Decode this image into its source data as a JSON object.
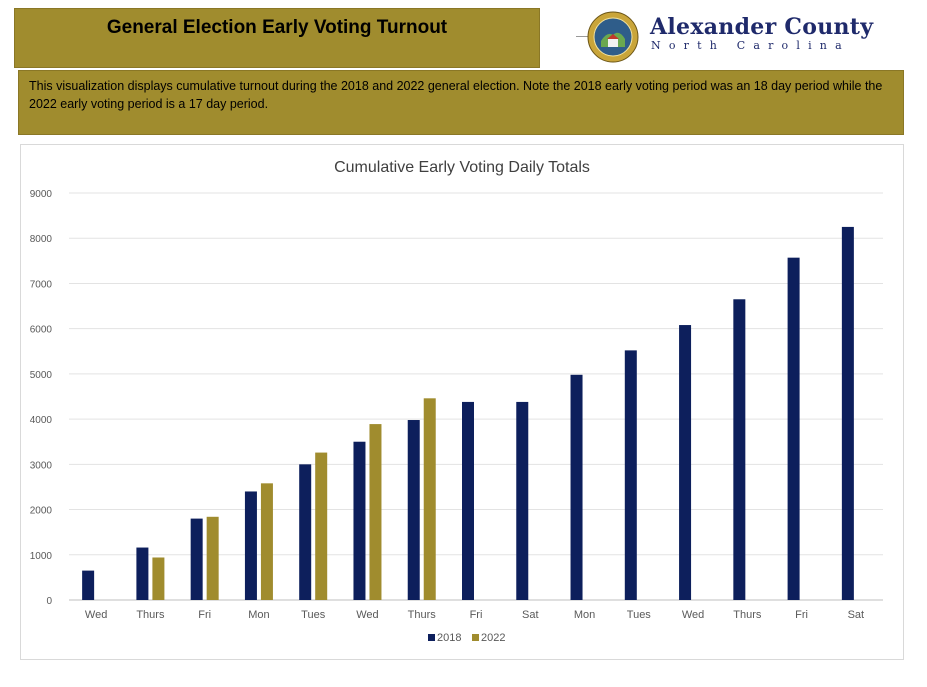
{
  "header": {
    "title": "General Election Early Voting Turnout"
  },
  "logo": {
    "name": "Alexander County",
    "subtitle": "North Carolina",
    "seal_text": "ALEXANDER COUNTY",
    "brand_color": "#1f2a6b"
  },
  "description": "This visualization displays cumulative turnout during the 2018 and 2022 general election. Note the 2018 early voting period was an 18 day period while the 2022 early voting period is a 17 day period.",
  "colors": {
    "banner": "#a08c2e",
    "series_2018": "#0d1f5c",
    "series_2022": "#a08c2e"
  },
  "chart_data": {
    "type": "bar",
    "title": "Cumulative Early Voting Daily Totals",
    "xlabel": "",
    "ylabel": "",
    "ylim": [
      0,
      9000
    ],
    "yticks": [
      0,
      1000,
      2000,
      3000,
      4000,
      5000,
      6000,
      7000,
      8000,
      9000
    ],
    "grid": true,
    "legend_position": "bottom",
    "categories": [
      "Wed",
      "Thurs",
      "Fri",
      "Mon",
      "Tues",
      "Wed",
      "Thurs",
      "Fri",
      "Sat",
      "Mon",
      "Tues",
      "Wed",
      "Thurs",
      "Fri",
      "Sat"
    ],
    "series": [
      {
        "name": "2018",
        "color": "#0d1f5c",
        "values": [
          650,
          1160,
          1800,
          2400,
          3000,
          3500,
          3980,
          4380,
          4380,
          4980,
          5520,
          6080,
          6650,
          7570,
          8250
        ]
      },
      {
        "name": "2022",
        "color": "#a08c2e",
        "values": [
          null,
          940,
          1840,
          2580,
          3260,
          3890,
          4460,
          null,
          null,
          null,
          null,
          null,
          null,
          null,
          null
        ]
      }
    ]
  }
}
